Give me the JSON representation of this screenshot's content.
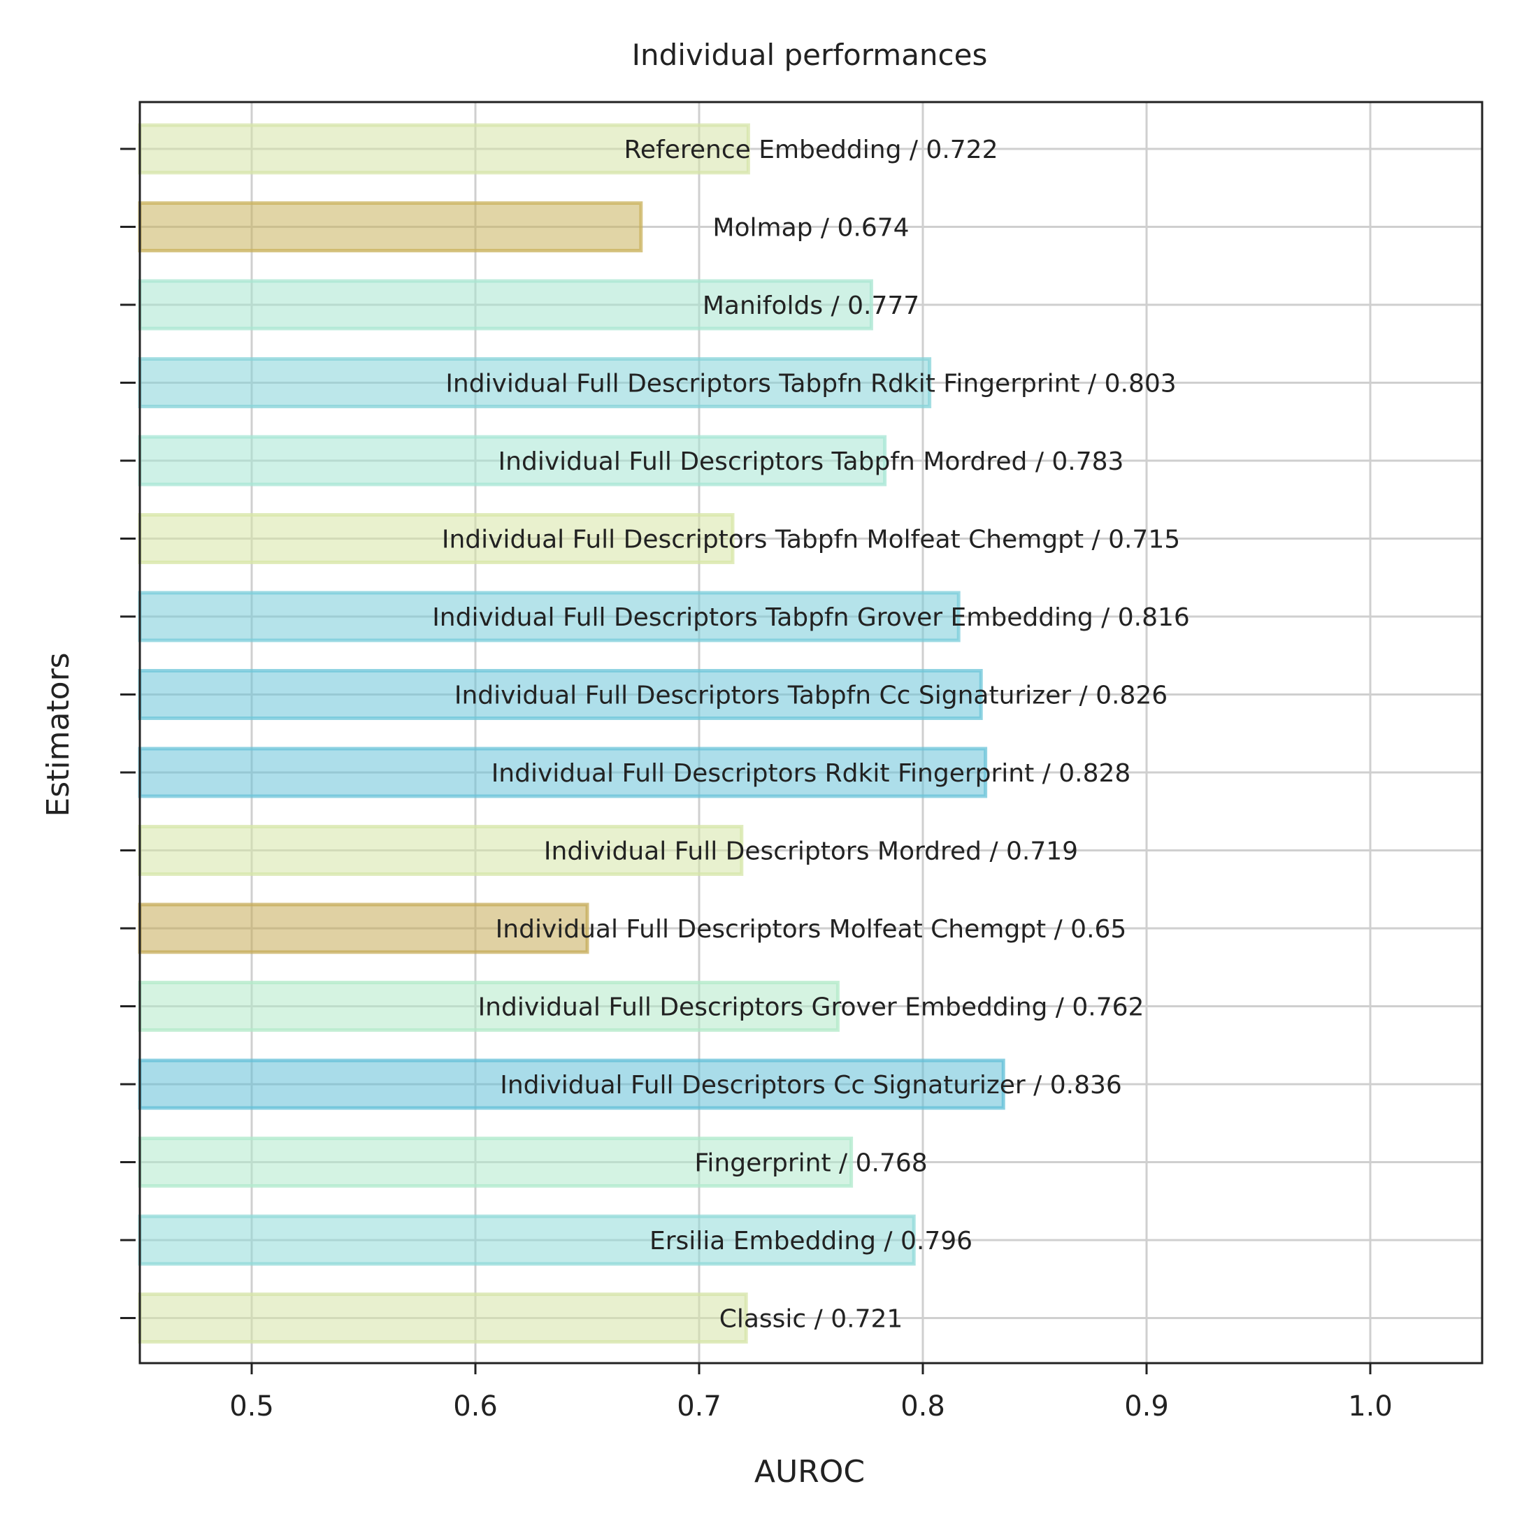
{
  "chart_data": {
    "type": "bar",
    "orientation": "horizontal",
    "title": "Individual performances",
    "xlabel": "AUROC",
    "ylabel": "Estimators",
    "xlim": [
      0.45,
      1.05
    ],
    "xticks": [
      0.5,
      0.6,
      0.7,
      0.8,
      0.9,
      1.0
    ],
    "xtick_labels": [
      "0.5",
      "0.6",
      "0.7",
      "0.8",
      "0.9",
      "1.0"
    ],
    "grid": true,
    "legend": "none",
    "bars": [
      {
        "label": "Reference Embedding / 0.722",
        "value": 0.722,
        "color": "#d6e4a8"
      },
      {
        "label": "Molmap / 0.674",
        "value": 0.674,
        "color": "#c9b25c"
      },
      {
        "label": "Manifolds / 0.777",
        "value": 0.777,
        "color": "#a8e6d0"
      },
      {
        "label": "Individual Full Descriptors Tabpfn Rdkit Fingerprint / 0.803",
        "value": 0.803,
        "color": "#85d3d8"
      },
      {
        "label": "Individual Full Descriptors Tabpfn Mordred / 0.783",
        "value": 0.783,
        "color": "#a5e5d4"
      },
      {
        "label": "Individual Full Descriptors Tabpfn Molfeat Chemgpt / 0.715",
        "value": 0.715,
        "color": "#d7e5a6"
      },
      {
        "label": "Individual Full Descriptors Tabpfn Grover Embedding / 0.816",
        "value": 0.816,
        "color": "#79ccd9"
      },
      {
        "label": "Individual Full Descriptors Tabpfn Cc Signaturizer / 0.826",
        "value": 0.826,
        "color": "#6cc5d8"
      },
      {
        "label": "Individual Full Descriptors Rdkit Fingerprint / 0.828",
        "value": 0.828,
        "color": "#6ac3d8"
      },
      {
        "label": "Individual Full Descriptors Mordred / 0.719",
        "value": 0.719,
        "color": "#d6e5a8"
      },
      {
        "label": "Individual Full Descriptors Molfeat Chemgpt / 0.65",
        "value": 0.65,
        "color": "#c6ab58"
      },
      {
        "label": "Individual Full Descriptors Grover Embedding / 0.762",
        "value": 0.762,
        "color": "#b2eac8"
      },
      {
        "label": "Individual Full Descriptors Cc Signaturizer / 0.836",
        "value": 0.836,
        "color": "#62bfd7"
      },
      {
        "label": "Fingerprint / 0.768",
        "value": 0.768,
        "color": "#b0e9cc"
      },
      {
        "label": "Ersilia Embedding / 0.796",
        "value": 0.796,
        "color": "#8fdad8"
      },
      {
        "label": "Classic / 0.721",
        "value": 0.721,
        "color": "#d6e4a8"
      }
    ]
  }
}
